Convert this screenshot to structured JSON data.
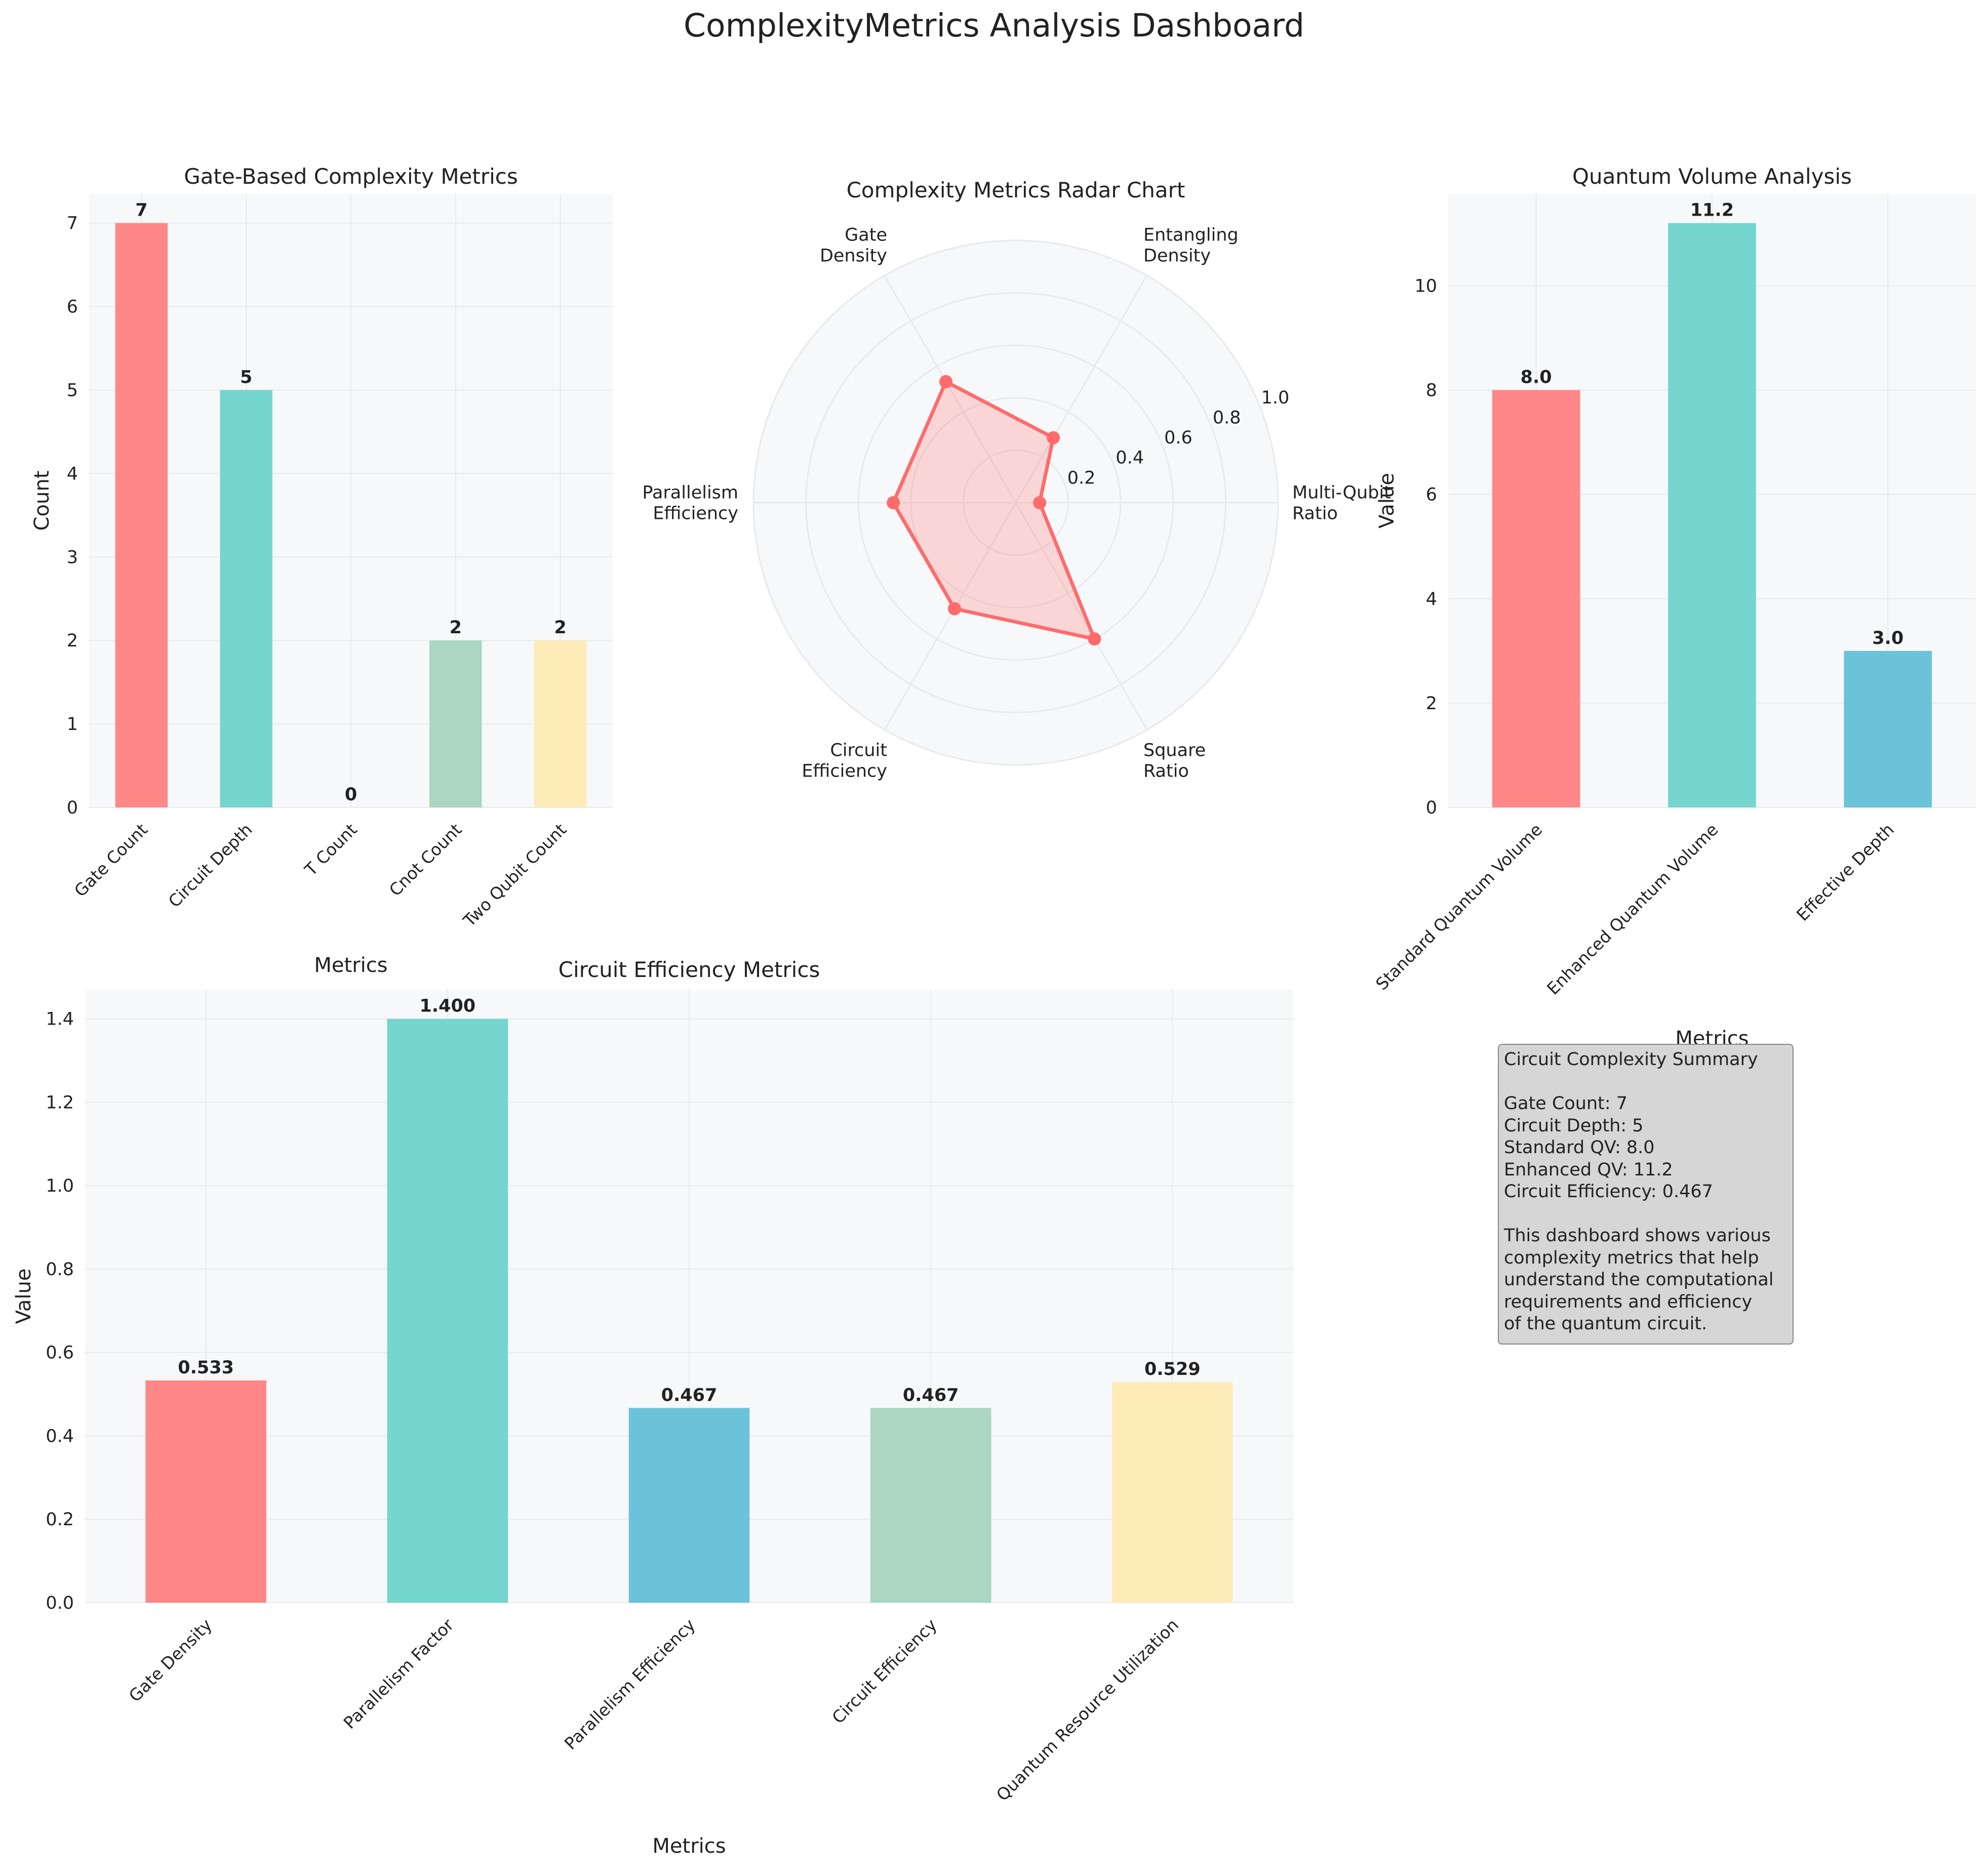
{
  "page_title": "ComplexityMetrics Analysis Dashboard",
  "colors": {
    "red": "#ff8787",
    "teal": "#74d6ce",
    "blue": "#6bc3da",
    "sage": "#aad6c2",
    "yellow": "#fdebb8",
    "radar": "#ff6b6b",
    "panel_bg": "#f7f8fa",
    "grid": "#e8eaee"
  },
  "chart_data": [
    {
      "id": "gate",
      "type": "bar",
      "title": "Gate-Based Complexity Metrics",
      "xlabel": "Metrics",
      "ylabel": "Count",
      "categories": [
        "Gate Count",
        "Circuit Depth",
        "T Count",
        "Cnot Count",
        "Two Qubit Count"
      ],
      "values": [
        7,
        5,
        0,
        2,
        2
      ],
      "value_labels": [
        "7",
        "5",
        "0",
        "2",
        "2"
      ],
      "bar_colors": [
        "#ff8787",
        "#74d6ce",
        "#6bc3da",
        "#aad6c2",
        "#fdebb8"
      ],
      "ylim": [
        0,
        7.35
      ],
      "yticks": [
        0,
        1,
        2,
        3,
        4,
        5,
        6,
        7
      ],
      "ytick_labels": [
        "0",
        "1",
        "2",
        "3",
        "4",
        "5",
        "6",
        "7"
      ],
      "grid": true
    },
    {
      "id": "radar",
      "type": "radar",
      "title": "Complexity Metrics Radar Chart",
      "axes": [
        "Multi-Qubit\nRatio",
        "Entangling\nDensity",
        "Gate\nDensity",
        "Parallelism\nEfficiency",
        "Circuit\nEfficiency",
        "Square\nRatio"
      ],
      "values": [
        0.091,
        0.286,
        0.533,
        0.467,
        0.467,
        0.6
      ],
      "rlim": [
        0,
        1
      ],
      "rticks": [
        0.2,
        0.4,
        0.6,
        0.8,
        1.0
      ],
      "rtick_labels": [
        "0.2",
        "0.4",
        "0.6",
        "0.8",
        "1.0"
      ],
      "grid": true
    },
    {
      "id": "qv",
      "type": "bar",
      "title": "Quantum Volume Analysis",
      "xlabel": "Metrics",
      "ylabel": "Value",
      "categories": [
        "Standard Quantum Volume",
        "Enhanced Quantum Volume",
        "Effective Depth"
      ],
      "values": [
        8.0,
        11.2,
        3.0
      ],
      "value_labels": [
        "8.0",
        "11.2",
        "3.0"
      ],
      "bar_colors": [
        "#ff8787",
        "#74d6ce",
        "#6bc3da"
      ],
      "ylim": [
        0,
        11.76
      ],
      "yticks": [
        0,
        2,
        4,
        6,
        8,
        10
      ],
      "ytick_labels": [
        "0",
        "2",
        "4",
        "6",
        "8",
        "10"
      ],
      "grid": true
    },
    {
      "id": "eff",
      "type": "bar",
      "title": "Circuit Efficiency Metrics",
      "xlabel": "Metrics",
      "ylabel": "Value",
      "categories": [
        "Gate Density",
        "Parallelism Factor",
        "Parallelism Efficiency",
        "Circuit Efficiency",
        "Quantum Resource Utilization"
      ],
      "values": [
        0.533,
        1.4,
        0.467,
        0.467,
        0.529
      ],
      "value_labels": [
        "0.533",
        "1.400",
        "0.467",
        "0.467",
        "0.529"
      ],
      "bar_colors": [
        "#ff8787",
        "#74d6ce",
        "#6bc3da",
        "#aad6c2",
        "#fdebb8"
      ],
      "ylim": [
        0,
        1.47
      ],
      "yticks": [
        0,
        0.2,
        0.4,
        0.6,
        0.8,
        1.0,
        1.2,
        1.4
      ],
      "ytick_labels": [
        "0.0",
        "0.2",
        "0.4",
        "0.6",
        "0.8",
        "1.0",
        "1.2",
        "1.4"
      ],
      "grid": true
    }
  ],
  "summary": {
    "text": "Circuit Complexity Summary\n\nGate Count: 7\nCircuit Depth: 5\nStandard QV: 8.0\nEnhanced QV: 11.2\nCircuit Efficiency: 0.467\n\nThis dashboard shows various\ncomplexity metrics that help\nunderstand the computational\nrequirements and efficiency\nof the quantum circuit."
  }
}
